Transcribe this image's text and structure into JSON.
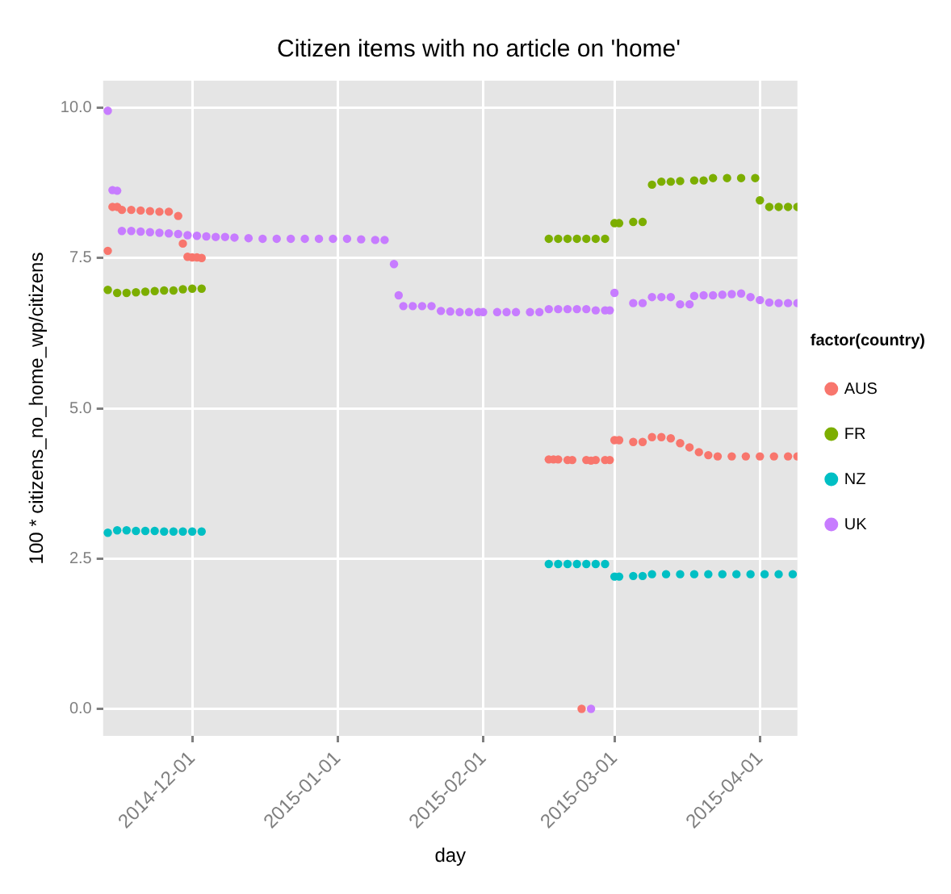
{
  "chart_data": {
    "type": "scatter",
    "title": "Citizen items with no article on 'home'",
    "xlabel": "day",
    "ylabel": "100 * citizens_no_home_wp/citizens",
    "legend_title": "factor(country)",
    "legend": "right",
    "grid": true,
    "marker": "circle",
    "xlim": [
      "2014-11-12",
      "2015-04-09"
    ],
    "xticks": [
      "2014-12-01",
      "2015-01-01",
      "2015-02-01",
      "2015-03-01",
      "2015-04-01"
    ],
    "ylim": [
      -0.45,
      10.45
    ],
    "yticks": [
      {
        "value": 0,
        "label": "0.0"
      },
      {
        "value": 2.5,
        "label": "2.5"
      },
      {
        "value": 5,
        "label": "5.0"
      },
      {
        "value": 7.5,
        "label": "7.5"
      },
      {
        "value": 10,
        "label": "10.0"
      }
    ],
    "series": [
      {
        "name": "AUS",
        "color": "#f8766d",
        "x": [
          "2014-11-13",
          "2014-11-14",
          "2014-11-15",
          "2014-11-16",
          "2014-11-18",
          "2014-11-20",
          "2014-11-22",
          "2014-11-24",
          "2014-11-26",
          "2014-11-28",
          "2014-11-29",
          "2014-11-30",
          "2014-12-01",
          "2014-12-02",
          "2014-12-03",
          "2015-02-15",
          "2015-02-16",
          "2015-02-17",
          "2015-02-19",
          "2015-02-20",
          "2015-02-22",
          "2015-02-23",
          "2015-02-24",
          "2015-02-25",
          "2015-02-27",
          "2015-02-28",
          "2015-03-01",
          "2015-03-02",
          "2015-03-05",
          "2015-03-07",
          "2015-03-09",
          "2015-03-11",
          "2015-03-13",
          "2015-03-15",
          "2015-03-17",
          "2015-03-19",
          "2015-03-21",
          "2015-03-23",
          "2015-03-26",
          "2015-03-29",
          "2015-04-01",
          "2015-04-04",
          "2015-04-07",
          "2015-04-09"
        ],
        "values": [
          7.62,
          8.35,
          8.35,
          8.3,
          8.3,
          8.29,
          8.28,
          8.27,
          8.27,
          8.2,
          7.74,
          7.52,
          7.51,
          7.51,
          7.5,
          4.15,
          4.15,
          4.15,
          4.14,
          4.14,
          0,
          4.14,
          4.13,
          4.14,
          4.14,
          4.14,
          4.47,
          4.47,
          4.44,
          4.44,
          4.52,
          4.52,
          4.5,
          4.42,
          4.35,
          4.27,
          4.22,
          4.2,
          4.2,
          4.2,
          4.2,
          4.2,
          4.2,
          4.2
        ]
      },
      {
        "name": "FR",
        "color": "#7cae00",
        "x": [
          "2014-11-13",
          "2014-11-15",
          "2014-11-17",
          "2014-11-19",
          "2014-11-21",
          "2014-11-23",
          "2014-11-25",
          "2014-11-27",
          "2014-11-29",
          "2014-12-01",
          "2014-12-03",
          "2015-02-15",
          "2015-02-17",
          "2015-02-19",
          "2015-02-21",
          "2015-02-23",
          "2015-02-25",
          "2015-02-27",
          "2015-03-01",
          "2015-03-02",
          "2015-03-05",
          "2015-03-07",
          "2015-03-09",
          "2015-03-11",
          "2015-03-13",
          "2015-03-15",
          "2015-03-18",
          "2015-03-20",
          "2015-03-22",
          "2015-03-25",
          "2015-03-28",
          "2015-03-31",
          "2015-04-01",
          "2015-04-03",
          "2015-04-05",
          "2015-04-07",
          "2015-04-09"
        ],
        "values": [
          6.97,
          6.92,
          6.92,
          6.93,
          6.94,
          6.95,
          6.96,
          6.96,
          6.98,
          6.99,
          6.99,
          7.82,
          7.82,
          7.82,
          7.82,
          7.82,
          7.82,
          7.82,
          8.08,
          8.08,
          8.1,
          8.1,
          8.72,
          8.77,
          8.77,
          8.78,
          8.79,
          8.79,
          8.83,
          8.83,
          8.83,
          8.83,
          8.46,
          8.35,
          8.35,
          8.35,
          8.35
        ]
      },
      {
        "name": "NZ",
        "color": "#00bfc4",
        "x": [
          "2014-11-13",
          "2014-11-15",
          "2014-11-17",
          "2014-11-19",
          "2014-11-21",
          "2014-11-23",
          "2014-11-25",
          "2014-11-27",
          "2014-11-29",
          "2014-12-01",
          "2014-12-03",
          "2015-02-15",
          "2015-02-17",
          "2015-02-19",
          "2015-02-21",
          "2015-02-23",
          "2015-02-25",
          "2015-02-27",
          "2015-03-01",
          "2015-03-02",
          "2015-03-05",
          "2015-03-07",
          "2015-03-09",
          "2015-03-12",
          "2015-03-15",
          "2015-03-18",
          "2015-03-21",
          "2015-03-24",
          "2015-03-27",
          "2015-03-30",
          "2015-04-02",
          "2015-04-05",
          "2015-04-08"
        ],
        "values": [
          2.93,
          2.97,
          2.97,
          2.96,
          2.96,
          2.96,
          2.95,
          2.95,
          2.95,
          2.95,
          2.95,
          2.41,
          2.41,
          2.41,
          2.41,
          2.41,
          2.41,
          2.41,
          2.2,
          2.2,
          2.21,
          2.21,
          2.24,
          2.24,
          2.24,
          2.24,
          2.24,
          2.24,
          2.24,
          2.24,
          2.24,
          2.24,
          2.24
        ]
      },
      {
        "name": "UK",
        "color": "#c77cff",
        "x": [
          "2014-11-13",
          "2014-11-14",
          "2014-11-15",
          "2014-11-16",
          "2014-11-18",
          "2014-11-20",
          "2014-11-22",
          "2014-11-24",
          "2014-11-26",
          "2014-11-28",
          "2014-11-30",
          "2014-12-02",
          "2014-12-04",
          "2014-12-06",
          "2014-12-08",
          "2014-12-10",
          "2014-12-13",
          "2014-12-16",
          "2014-12-19",
          "2014-12-22",
          "2014-12-25",
          "2014-12-28",
          "2014-12-31",
          "2015-01-03",
          "2015-01-06",
          "2015-01-09",
          "2015-01-11",
          "2015-01-13",
          "2015-01-14",
          "2015-01-15",
          "2015-01-17",
          "2015-01-19",
          "2015-01-21",
          "2015-01-23",
          "2015-01-25",
          "2015-01-27",
          "2015-01-29",
          "2015-01-31",
          "2015-02-01",
          "2015-02-04",
          "2015-02-06",
          "2015-02-08",
          "2015-02-11",
          "2015-02-13",
          "2015-02-15",
          "2015-02-17",
          "2015-02-19",
          "2015-02-21",
          "2015-02-23",
          "2015-02-24",
          "2015-02-25",
          "2015-02-27",
          "2015-02-28",
          "2015-03-01",
          "2015-03-05",
          "2015-03-07",
          "2015-03-09",
          "2015-03-11",
          "2015-03-13",
          "2015-03-15",
          "2015-03-17",
          "2015-03-18",
          "2015-03-20",
          "2015-03-22",
          "2015-03-24",
          "2015-03-26",
          "2015-03-28",
          "2015-03-30",
          "2015-04-01",
          "2015-04-03",
          "2015-04-05",
          "2015-04-07",
          "2015-04-09"
        ],
        "values": [
          9.95,
          8.63,
          8.62,
          7.95,
          7.95,
          7.94,
          7.93,
          7.92,
          7.91,
          7.9,
          7.88,
          7.87,
          7.86,
          7.85,
          7.85,
          7.84,
          7.83,
          7.82,
          7.82,
          7.82,
          7.82,
          7.82,
          7.82,
          7.82,
          7.81,
          7.8,
          7.8,
          7.4,
          6.88,
          6.7,
          6.7,
          6.7,
          6.7,
          6.62,
          6.61,
          6.6,
          6.6,
          6.6,
          6.6,
          6.6,
          6.6,
          6.6,
          6.6,
          6.6,
          6.65,
          6.65,
          6.65,
          6.65,
          6.65,
          0,
          6.63,
          6.63,
          6.63,
          6.92,
          6.75,
          6.75,
          6.85,
          6.85,
          6.85,
          6.73,
          6.73,
          6.87,
          6.88,
          6.88,
          6.89,
          6.9,
          6.91,
          6.85,
          6.8,
          6.76,
          6.75,
          6.75,
          6.75
        ]
      }
    ]
  }
}
